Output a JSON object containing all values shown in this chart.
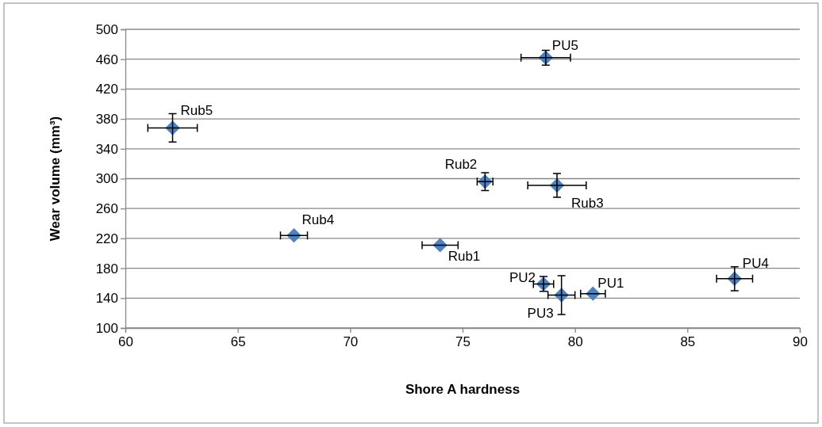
{
  "chart_data": {
    "type": "scatter",
    "xlabel": "Shore A hardness",
    "ylabel": "Wear volume (mm³)",
    "xlim": [
      60,
      90
    ],
    "xticks": [
      60,
      65,
      70,
      75,
      80,
      85,
      90
    ],
    "ylim": [
      100,
      500
    ],
    "yticks": [
      100,
      140,
      180,
      220,
      260,
      300,
      340,
      380,
      420,
      460,
      500
    ],
    "grid": "y",
    "marker": "diamond",
    "series": [
      {
        "color": "#4f81bd",
        "x": [
          74.0,
          76.0,
          79.2,
          67.5,
          62.1,
          80.8,
          78.6,
          79.4,
          87.1,
          78.7
        ],
        "values": [
          211,
          296,
          291,
          224,
          368,
          146,
          159,
          144,
          166,
          462
        ],
        "xerrors": [
          0.8,
          0.35,
          1.3,
          0.6,
          1.1,
          0.55,
          0.45,
          0.6,
          0.8,
          1.1
        ],
        "errors": [
          null,
          12,
          16,
          null,
          19,
          null,
          10,
          26,
          16,
          10
        ],
        "value_labels": [
          "Rub1",
          "Rub2",
          "Rub3",
          "Rub4",
          "Rub5",
          "PU1",
          "PU2",
          "PU3",
          "PU4",
          "PU5"
        ]
      }
    ]
  }
}
